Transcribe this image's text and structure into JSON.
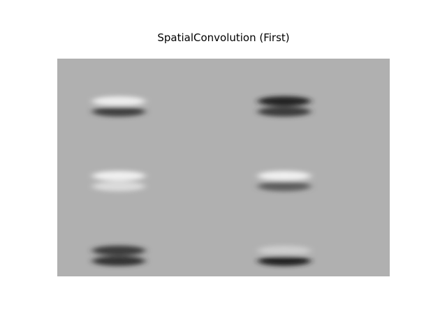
{
  "chart_data": {
    "type": "heatmap",
    "title": "SpatialConvolution (First)",
    "xlabel": "",
    "ylabel": "",
    "axis_visible": false,
    "grid": false,
    "colormap": "gray",
    "background_value": 0.69,
    "layout": {
      "rows": 3,
      "cols": 2
    },
    "filters": [
      {
        "row": 0,
        "col": 0,
        "top_lobe": "light",
        "bottom_lobe": "dark",
        "top_strength": 0.85,
        "bottom_strength": 0.75
      },
      {
        "row": 0,
        "col": 1,
        "top_lobe": "dark",
        "bottom_lobe": "dark",
        "top_strength": 0.95,
        "bottom_strength": 0.8
      },
      {
        "row": 1,
        "col": 0,
        "top_lobe": "light",
        "bottom_lobe": "light",
        "top_strength": 0.9,
        "bottom_strength": 0.6
      },
      {
        "row": 1,
        "col": 1,
        "top_lobe": "light",
        "bottom_lobe": "dark",
        "top_strength": 0.9,
        "bottom_strength": 0.55
      },
      {
        "row": 2,
        "col": 0,
        "top_lobe": "dark",
        "bottom_lobe": "dark",
        "top_strength": 0.8,
        "bottom_strength": 0.85
      },
      {
        "row": 2,
        "col": 1,
        "top_lobe": "light",
        "bottom_lobe": "dark",
        "top_strength": 0.4,
        "bottom_strength": 0.95
      }
    ]
  }
}
